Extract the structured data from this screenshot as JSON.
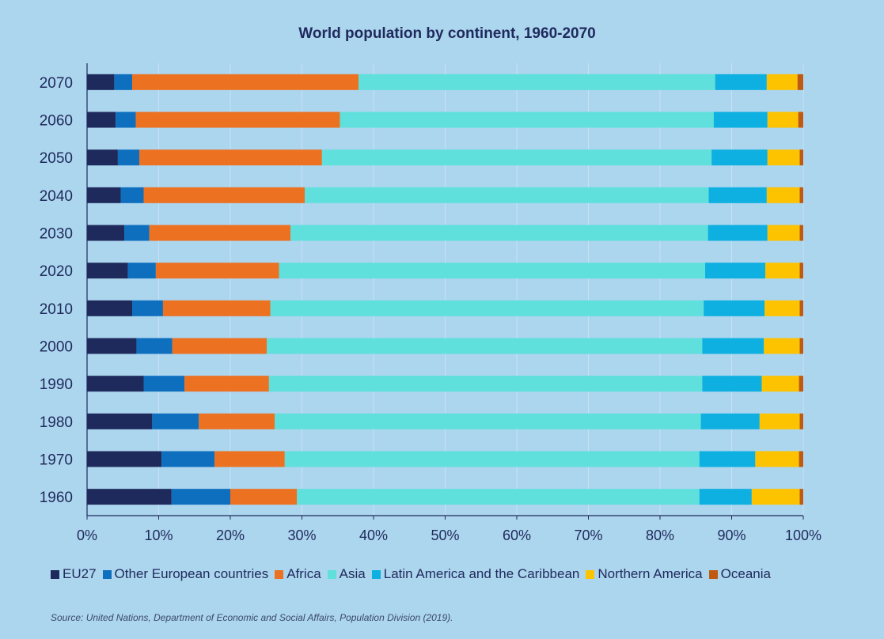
{
  "chart_data": {
    "type": "bar",
    "orientation": "horizontal",
    "stacked": true,
    "title": "World population by continent, 1960-2070",
    "categories": [
      "1960",
      "1970",
      "1980",
      "1990",
      "2000",
      "2010",
      "2020",
      "2030",
      "2040",
      "2050",
      "2060",
      "2070"
    ],
    "series": [
      {
        "name": "EU27",
        "color": "#1f2a5c",
        "values": [
          11.8,
          10.4,
          9.1,
          7.9,
          6.9,
          6.3,
          5.7,
          5.2,
          4.7,
          4.3,
          4.0,
          3.8
        ]
      },
      {
        "name": "Other European countries",
        "color": "#0e6fbf",
        "values": [
          8.2,
          7.4,
          6.5,
          5.7,
          5.0,
          4.3,
          3.9,
          3.5,
          3.2,
          3.0,
          2.8,
          2.5
        ]
      },
      {
        "name": "Africa",
        "color": "#ec7121",
        "values": [
          9.3,
          9.8,
          10.6,
          11.8,
          13.2,
          15.0,
          17.2,
          19.7,
          22.5,
          25.5,
          28.5,
          31.6
        ]
      },
      {
        "name": "Asia",
        "color": "#5fe0dc",
        "values": [
          56.2,
          57.9,
          59.5,
          60.5,
          60.8,
          60.5,
          59.5,
          58.3,
          56.4,
          54.4,
          52.2,
          49.8
        ]
      },
      {
        "name": "Latin America and the Caribbean",
        "color": "#0db0e0",
        "values": [
          7.3,
          7.8,
          8.2,
          8.3,
          8.6,
          8.5,
          8.4,
          8.3,
          8.1,
          7.8,
          7.5,
          7.2
        ]
      },
      {
        "name": "Northern America",
        "color": "#fdc300",
        "values": [
          6.7,
          6.1,
          5.6,
          5.2,
          5.0,
          4.9,
          4.8,
          4.5,
          4.6,
          4.5,
          4.3,
          4.3
        ]
      },
      {
        "name": "Oceania",
        "color": "#c05a12",
        "values": [
          0.5,
          0.6,
          0.5,
          0.6,
          0.5,
          0.5,
          0.5,
          0.5,
          0.5,
          0.5,
          0.7,
          0.8
        ]
      }
    ],
    "xlim": [
      0,
      100
    ],
    "xticks": [
      "0%",
      "10%",
      "20%",
      "30%",
      "40%",
      "50%",
      "60%",
      "70%",
      "80%",
      "90%",
      "100%"
    ],
    "grid": true,
    "legend_position": "bottom",
    "background": "#acd5ee"
  },
  "source": "Source: United Nations, Department of Economic and Social Affairs, Population Division (2019)."
}
